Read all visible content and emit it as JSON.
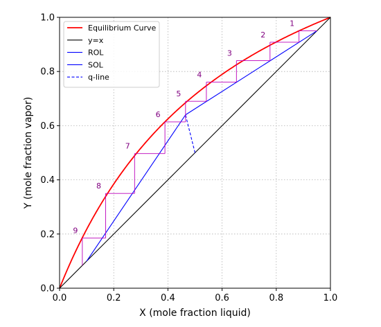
{
  "chart_data": {
    "type": "line",
    "title": "",
    "xlabel": "X (mole fraction liquid)",
    "ylabel": "Y (mole fraction vapor)",
    "xlim": [
      0,
      1
    ],
    "ylim": [
      0,
      1
    ],
    "xticks": [
      "0.0",
      "0.2",
      "0.4",
      "0.6",
      "0.8",
      "1.0"
    ],
    "yticks": [
      "0.0",
      "0.2",
      "0.4",
      "0.6",
      "0.8",
      "1.0"
    ],
    "grid": true,
    "legend_position": "top-left",
    "relative_volatility": 2.5,
    "series": [
      {
        "name": "Equilibrium Curve",
        "color": "#ff0000",
        "style": "solid",
        "relation": "y = 2.5x / (1 + 1.5x)"
      },
      {
        "name": "y=x",
        "color": "#000000",
        "style": "solid",
        "x": [
          0,
          1
        ],
        "y": [
          0,
          1
        ]
      },
      {
        "name": "ROL",
        "color": "#0000ff",
        "style": "solid",
        "x": [
          0.465,
          0.95
        ],
        "y": [
          0.64,
          0.95
        ]
      },
      {
        "name": "SOL",
        "color": "#0000ff",
        "style": "solid",
        "x": [
          0.1,
          0.465
        ],
        "y": [
          0.1,
          0.64
        ]
      },
      {
        "name": "q-line",
        "color": "#0000ff",
        "style": "dashed",
        "x": [
          0.5,
          0.465
        ],
        "y": [
          0.5,
          0.64
        ]
      }
    ],
    "stage_color": "#bb00bb",
    "stage_label_color": "#800080",
    "stages": [
      {
        "label": "1",
        "x": [
          0.95,
          0.884
        ],
        "y": [
          0.95,
          0.95
        ]
      },
      {
        "label": "2",
        "x": [
          0.884,
          0.777
        ],
        "y": [
          0.908,
          0.908
        ]
      },
      {
        "label": "3",
        "x": [
          0.777,
          0.653
        ],
        "y": [
          0.84,
          0.84
        ]
      },
      {
        "label": "4",
        "x": [
          0.653,
          0.542
        ],
        "y": [
          0.761,
          0.761
        ]
      },
      {
        "label": "5",
        "x": [
          0.542,
          0.465
        ],
        "y": [
          0.69,
          0.69
        ]
      },
      {
        "label": "6",
        "x": [
          0.465,
          0.389
        ],
        "y": [
          0.614,
          0.614
        ]
      },
      {
        "label": "7",
        "x": [
          0.389,
          0.277
        ],
        "y": [
          0.497,
          0.497
        ]
      },
      {
        "label": "8",
        "x": [
          0.277,
          0.17
        ],
        "y": [
          0.35,
          0.35
        ]
      },
      {
        "label": "9",
        "x": [
          0.17,
          0.084
        ],
        "y": [
          0.185,
          0.185
        ]
      }
    ]
  }
}
